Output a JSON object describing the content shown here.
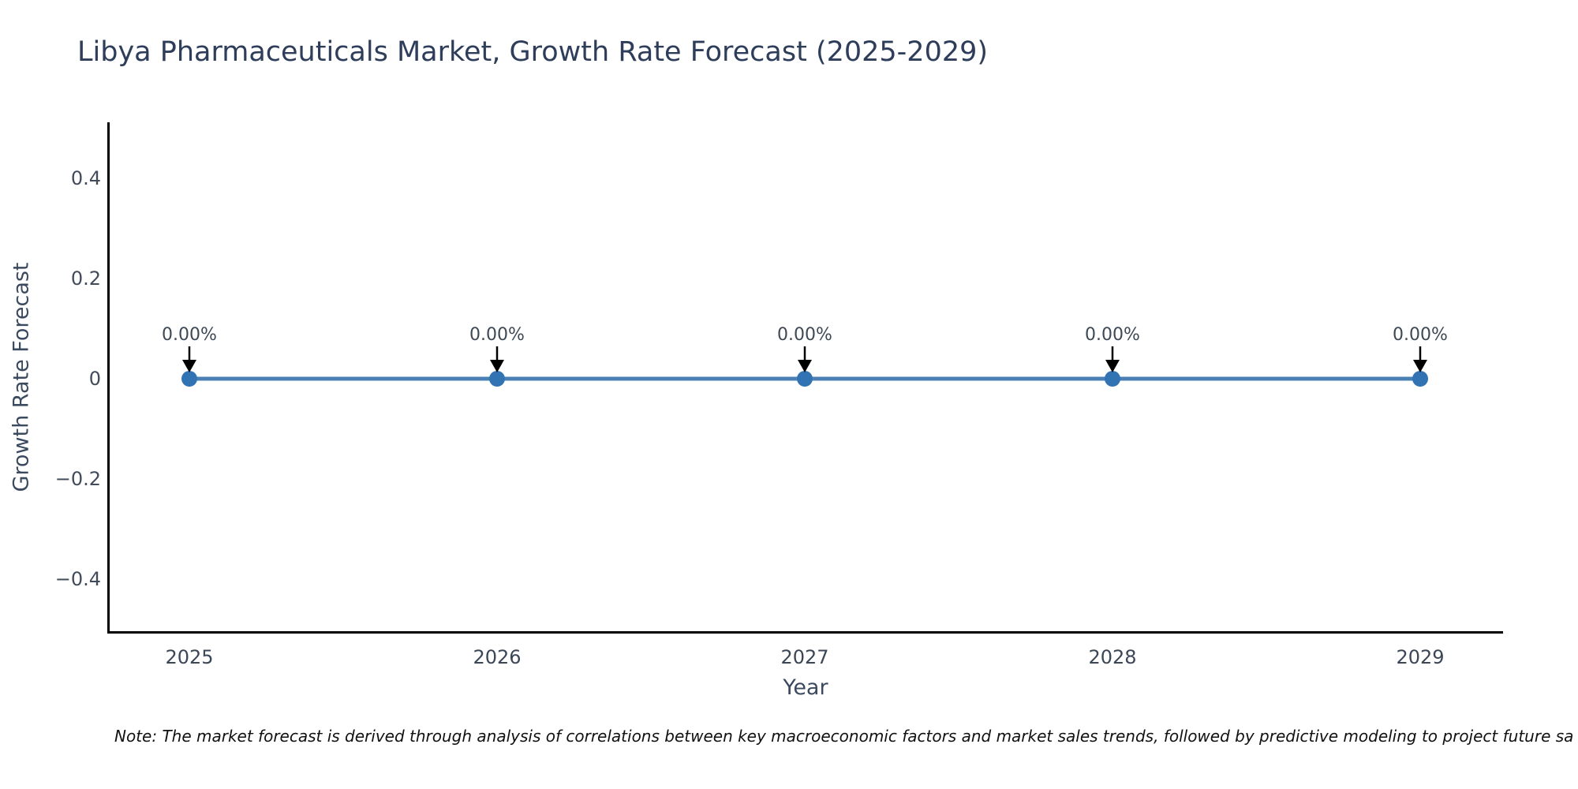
{
  "chart_data": {
    "type": "line",
    "title": "Libya Pharmaceuticals Market, Growth Rate Forecast (2025-2029)",
    "xlabel": "Year",
    "ylabel": "Growth Rate Forecast",
    "categories": [
      2025,
      2026,
      2027,
      2028,
      2029
    ],
    "series": [
      {
        "name": "Growth Rate Forecast",
        "values": [
          0,
          0,
          0,
          0,
          0
        ]
      }
    ],
    "point_labels": [
      "0.00%",
      "0.00%",
      "0.00%",
      "0.00%",
      "0.00%"
    ],
    "xtick_labels": [
      "2025",
      "2026",
      "2027",
      "2028",
      "2029"
    ],
    "ytick_values": [
      0.4,
      0.2,
      0,
      -0.2,
      -0.4
    ],
    "ytick_labels": [
      "0.4",
      "0.2",
      "0",
      "−0.2",
      "−0.4"
    ],
    "ylim": [
      -0.51,
      0.51
    ],
    "grid": false,
    "legend": "none",
    "colors": {
      "line": "#4a80b4",
      "marker": "#3273b3",
      "arrow": "#000000",
      "axis": "#000000",
      "title": "#2e3d59"
    }
  },
  "footnote": "Note: The market forecast is derived through analysis of correlations between key macroeconomic factors and market sales trends, followed by predictive modeling to project future sa"
}
